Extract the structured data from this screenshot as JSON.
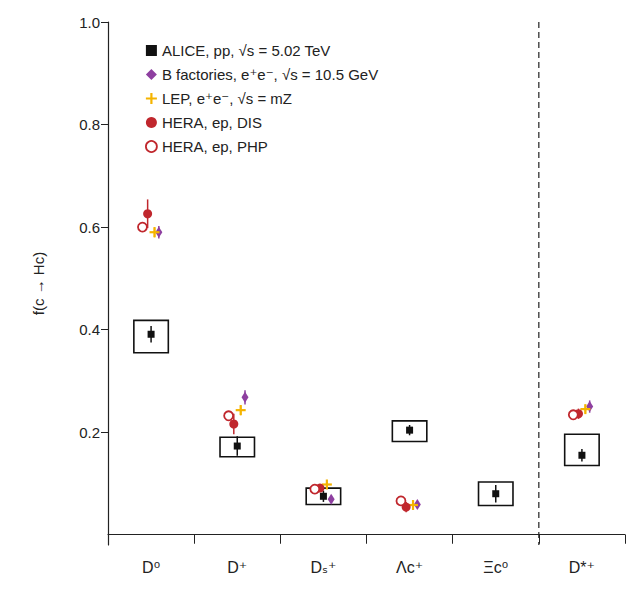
{
  "chart_data": {
    "type": "scatter",
    "y_label": "f(c → Hc)",
    "categories": [
      "D⁰",
      "D⁺",
      "Dₛ⁺",
      "Λc⁺",
      "Ξc⁰",
      "D*⁺"
    ],
    "ylim": [
      -0.02,
      1.0
    ],
    "yticks": [
      0.2,
      0.4,
      0.6,
      {
        "value": 0.8,
        "label": "0.8"
      },
      {
        "value": 1.0,
        "label": "1.0"
      }
    ],
    "grid": false,
    "legend": "upper left",
    "series": [
      {
        "name": "ALICE, pp, √s = 5.02 TeV",
        "color": "#111111",
        "marker": "square",
        "values": [
          0.391,
          0.173,
          0.075,
          0.204,
          0.08,
          0.155
        ],
        "errors": [
          0.016,
          0.019,
          0.011,
          0.01,
          0.017,
          0.012
        ],
        "syst_low": [
          0.036,
          0.021,
          0.016,
          0.022,
          0.023,
          0.02
        ],
        "syst_high": [
          0.027,
          0.017,
          0.016,
          0.018,
          0.023,
          0.041
        ]
      },
      {
        "name": "B factories, e⁺e⁻, √s = 10.5 GeV",
        "color": "#8e3fa0",
        "marker": "diamond",
        "values": [
          0.59,
          0.268,
          0.069,
          0.059,
          null,
          0.25
        ],
        "errors": [
          0.012,
          0.014,
          0.005,
          0.005,
          null,
          0.012
        ]
      },
      {
        "name": "LEP, e⁺e⁻, √s = mZ",
        "color": "#f5b400",
        "marker": "plus",
        "values": [
          0.59,
          0.243,
          0.098,
          0.058,
          null,
          0.245
        ],
        "errors": [
          0.01,
          0.01,
          0.006,
          0.005,
          null,
          0.008
        ]
      },
      {
        "name": "HERA, ep, DIS",
        "color": "#c0272d",
        "marker": "circle",
        "values": [
          0.626,
          0.216,
          0.091,
          0.054,
          null,
          0.236
        ],
        "errors": [
          0.028,
          0.02,
          0.007,
          0.01,
          null,
          0.01
        ]
      },
      {
        "name": "HERA, ep, PHP",
        "color": "#c0272d",
        "marker": "open_circle",
        "values": [
          0.6,
          0.232,
          0.089,
          0.066,
          null,
          0.234
        ],
        "errors": [
          0.008,
          0.008,
          0.006,
          0.006,
          null,
          0.008
        ]
      }
    ]
  }
}
